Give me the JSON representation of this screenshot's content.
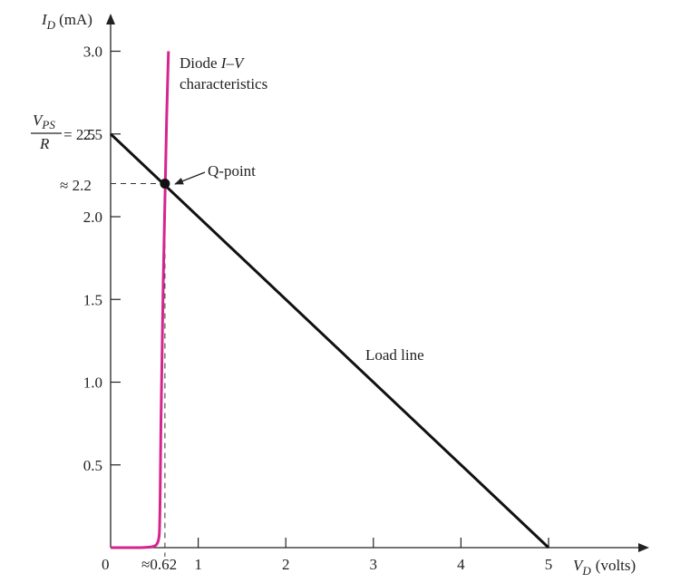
{
  "chart_data": {
    "type": "line",
    "y_axis": {
      "symbol": "I",
      "subscript": "D",
      "unit": "(mA)",
      "ticks": [
        0.5,
        1.0,
        1.5,
        2.0,
        2.5,
        3.0
      ]
    },
    "x_axis": {
      "symbol": "V",
      "subscript": "D",
      "unit": "(volts)",
      "ticks": [
        1,
        2,
        3,
        4,
        5
      ]
    },
    "xlim": [
      0,
      5
    ],
    "ylim": [
      0,
      3.0
    ],
    "origin_label": "0",
    "tick_labels_y": [
      "0.5",
      "1.0",
      "1.5",
      "2.0",
      "2.5",
      "3.0"
    ],
    "tick_labels_x": [
      "1",
      "2",
      "3",
      "4",
      "5"
    ],
    "intercept_label": {
      "numerator": "V",
      "numerator_sub": "PS",
      "denominator": "R",
      "suffix": "= 2.5"
    },
    "q_point": {
      "x": 0.62,
      "y": 2.2,
      "x_label": "≈0.62",
      "y_label": "≈ 2.2",
      "label": "Q-point"
    },
    "load_line": {
      "x": [
        0,
        5
      ],
      "y": [
        2.5,
        0
      ],
      "label": "Load line",
      "color": "#111111"
    },
    "diode_curve": {
      "label_line1": "Diode ",
      "label_iv": "I–V",
      "label_line2": "characteristics",
      "color": "#d6248f",
      "x": [
        0,
        0.2,
        0.35,
        0.45,
        0.5,
        0.53,
        0.55,
        0.56,
        0.57,
        0.58,
        0.62,
        0.66
      ],
      "y": [
        0.0,
        0.0,
        0.0,
        0.003,
        0.008,
        0.02,
        0.05,
        0.1,
        0.5,
        1.0,
        2.2,
        3.0
      ]
    }
  }
}
